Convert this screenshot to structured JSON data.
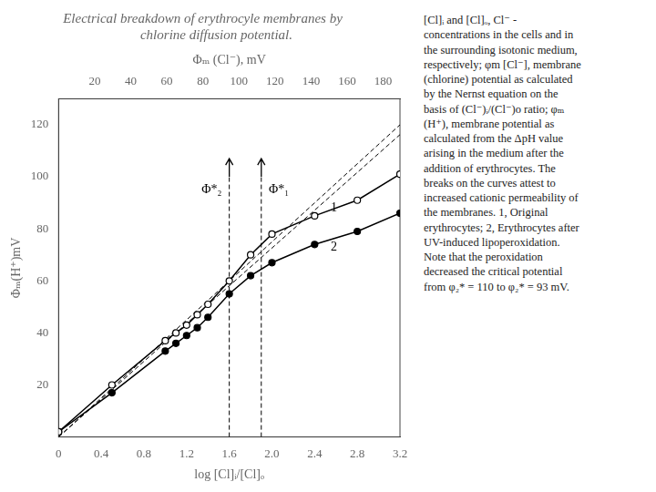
{
  "chart_data": {
    "type": "line",
    "title": "Electrical breakdown of erythrocyle membranes by",
    "subtitle": "        chlorine diffusion potential.",
    "xlabel": "log [Cl]ᵢ/[Cl]ₒ",
    "x2label": "Φₘ (Cl⁻), mV",
    "ylabel": "Φₘ(H⁺)mV",
    "xlim": [
      0,
      3.2
    ],
    "xticks": [
      0,
      0.4,
      0.8,
      1.2,
      1.6,
      {
        "value": 2.0,
        "label": "2.0"
      },
      2.4,
      2.8,
      3.2
    ],
    "x2lim": [
      0,
      3.2
    ],
    "x2ticks": [
      {
        "value": 0.3380662609871535,
        "label": "20"
      },
      {
        "value": 0.676132521974307,
        "label": "40"
      },
      {
        "value": 1.0141987829614605,
        "label": "60"
      },
      {
        "value": 1.352265043948614,
        "label": "80"
      },
      {
        "value": 1.6903313049357673,
        "label": "100"
      },
      {
        "value": 2.028397565922921,
        "label": "120"
      },
      {
        "value": 2.366463826910074,
        "label": "140"
      },
      {
        "value": 2.704530087897228,
        "label": "160"
      },
      {
        "value": 3.042596348884381,
        "label": "180"
      }
    ],
    "ylim": [
      0,
      130
    ],
    "yticks": [
      20,
      40,
      60,
      80,
      100,
      120
    ],
    "grid": false,
    "series": [
      {
        "color": "#000000",
        "marker": "open_circle",
        "line_style": "solid",
        "x": [
          0.0,
          0.5,
          1.0,
          1.1,
          1.2,
          1.3,
          1.4,
          1.6,
          1.8,
          2.0,
          2.4,
          2.8,
          3.2
        ],
        "values": [
          2.0,
          20.0,
          37.0,
          40.0,
          43.0,
          47.0,
          51.0,
          60.0,
          70.0,
          78.0,
          85.0,
          91.0,
          101.0
        ]
      },
      {
        "color": "#000000",
        "marker": "circle",
        "line_style": "solid",
        "x": [
          0.0,
          0.5,
          1.0,
          1.1,
          1.2,
          1.3,
          1.4,
          1.6,
          1.8,
          2.0,
          2.4,
          2.8,
          3.2
        ],
        "values": [
          2.0,
          17.0,
          33.0,
          36.0,
          39.0,
          42.0,
          46.0,
          55.0,
          62.0,
          67.0,
          74.0,
          79.0,
          86.0
        ]
      },
      {
        "color": "#000000",
        "marker": "none",
        "line_style": "dashed",
        "x": [
          0.0,
          3.2
        ],
        "values": [
          0.0,
          120.0
        ]
      },
      {
        "color": "#000000",
        "marker": "none",
        "line_style": "dashed",
        "x": [
          0.0,
          3.2
        ],
        "values": [
          0.0,
          116.21052631578947
        ]
      },
      {
        "color": "#000000",
        "marker": "none",
        "line_style": "dashed",
        "x": [
          1.6,
          1.6
        ],
        "values": [
          0,
          100
        ]
      },
      {
        "color": "#000000",
        "marker": "none",
        "line_style": "dashed",
        "x": [
          1.9,
          1.9
        ],
        "values": [
          0,
          100
        ]
      }
    ],
    "arrows": [
      {
        "x": 1.6,
        "from": 100,
        "to": 107
      },
      {
        "x": 1.9,
        "from": 100,
        "to": 107
      }
    ],
    "annotations": [
      {
        "text": "Φ*₂",
        "x": 1.53,
        "y": 95
      },
      {
        "text": "Φ*₁",
        "x": 1.97,
        "y": 95
      },
      {
        "text": "1",
        "x": 2.55,
        "y": 88
      },
      {
        "text": "2",
        "x": 2.55,
        "y": 73
      }
    ],
    "caption": "[Cl]ᵢ and [Cl]ₒ, Cl⁻ -\nconcentrations in the cells and in\nthe surrounding isotonic medium,\nrespectively; φm [Cl⁻], membrane\n(chlorine) potential as calculated\nby the Nernst equation on the\nbasis of (Cl⁻)ᵢ/(Cl⁻)o ratio; φₘ\n(H⁺), membrane potential as\ncalculated from the ΔpH value\narising in the medium after the\naddition of erythrocytes. The\nbreaks on the curves attest to\nincreased cationic permeability of\nthe membranes. 1, Original\nerythrocytes; 2, Erythrocytes after\nUV-induced lipoperoxidation.\nNote that the peroxidation\ndecreased the critical potential\nfrom φ₂* = 110 to φ₂* = 93 mV."
  }
}
